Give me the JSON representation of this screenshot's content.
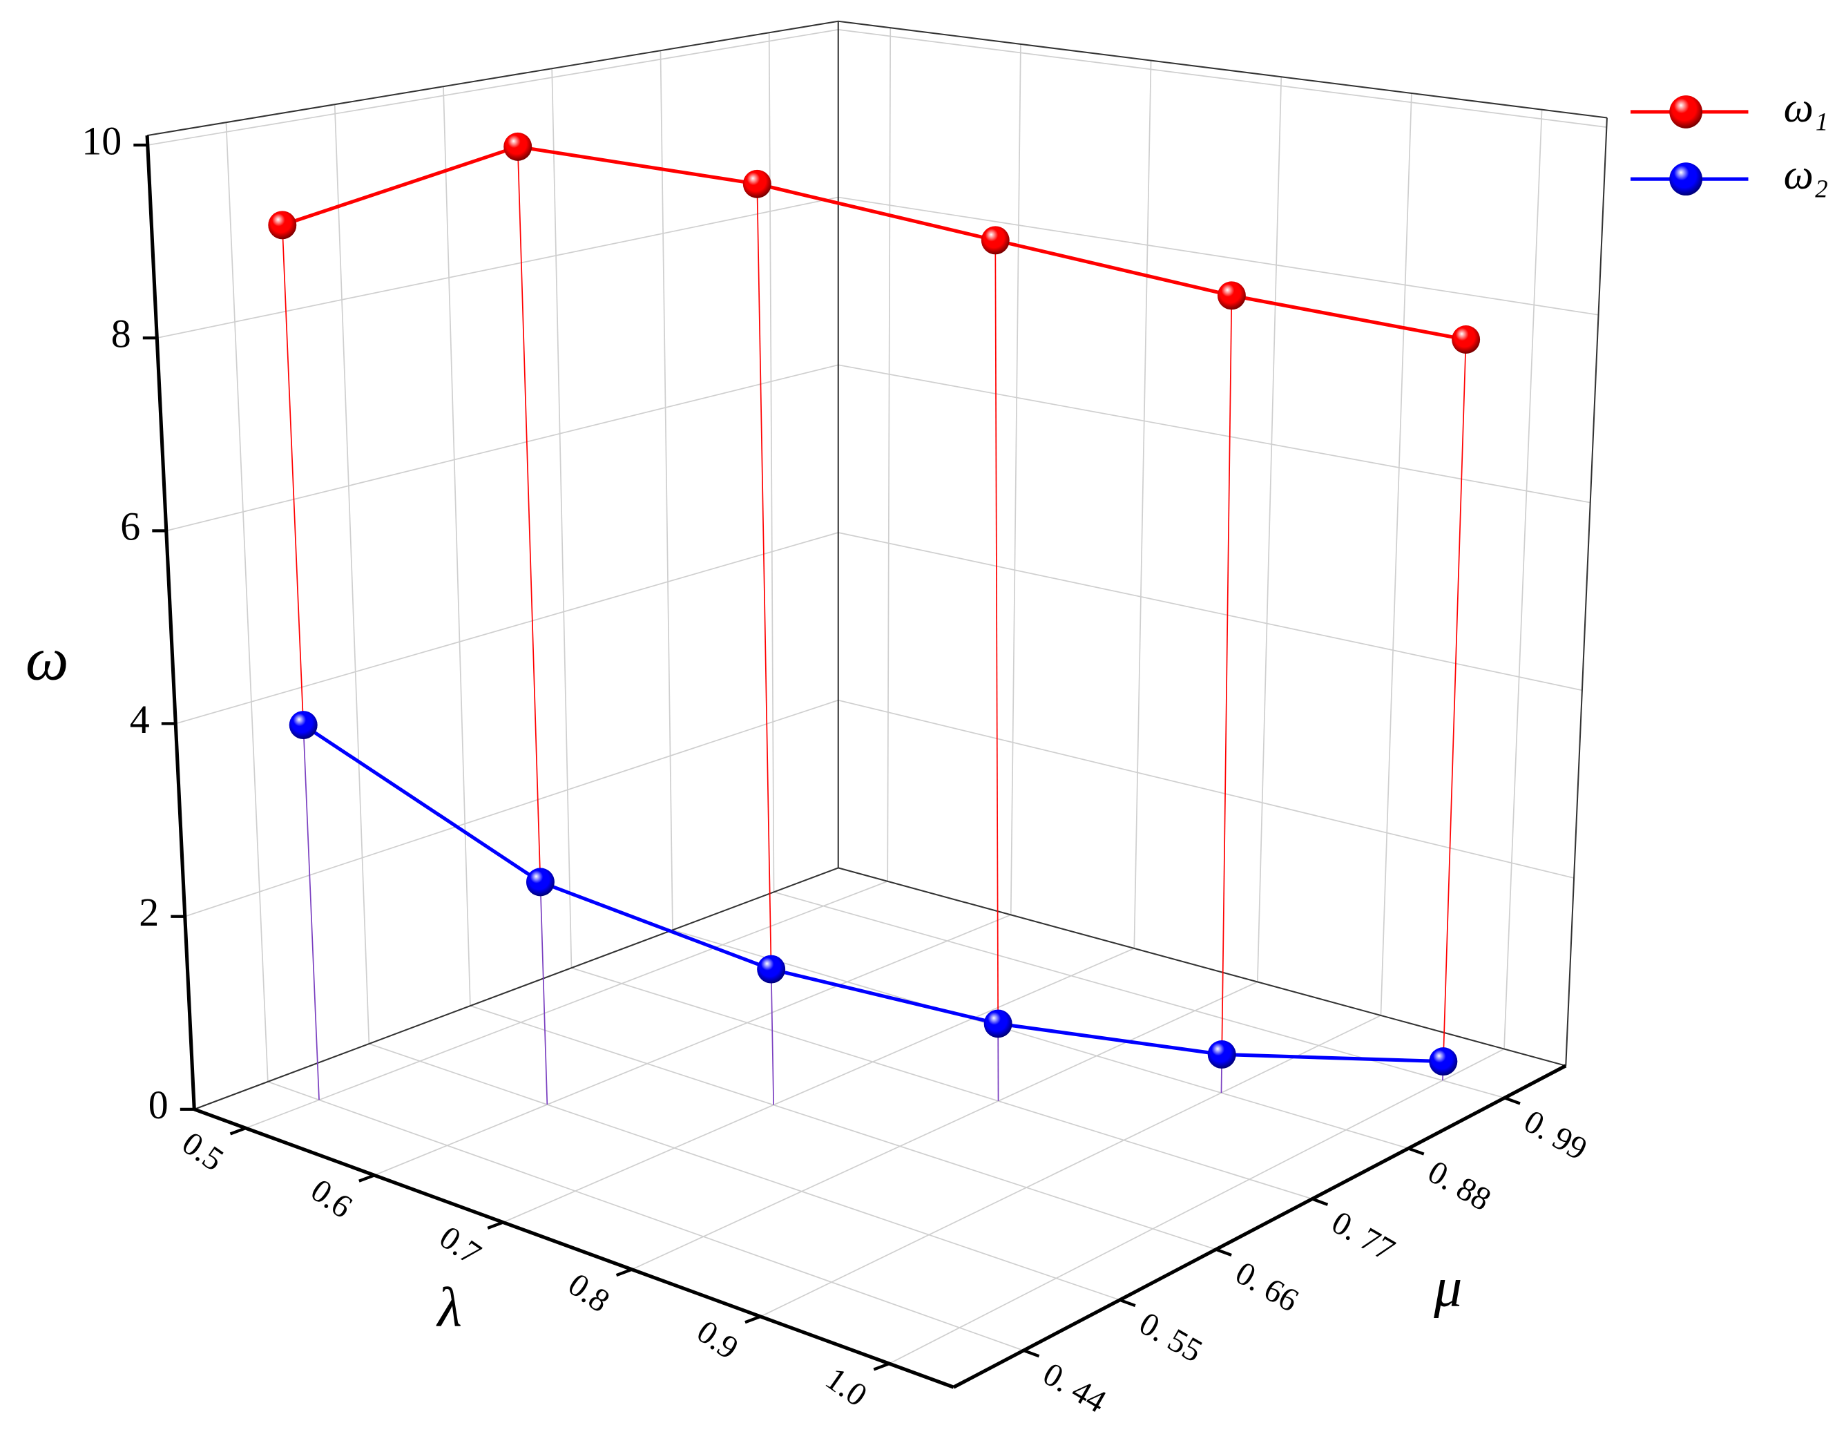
{
  "chart_data": {
    "type": "line3d",
    "x_label": "λ",
    "y_label": "μ",
    "z_label": "ω",
    "x": [
      0.5,
      0.6,
      0.7,
      0.8,
      0.9,
      1.0
    ],
    "y": [
      0.44,
      0.55,
      0.66,
      0.77,
      0.88,
      0.99
    ],
    "series": [
      {
        "name": "ω₁",
        "color": "#ff0000",
        "values": [
          9.1,
          9.9,
          9.5,
          8.9,
          8.3,
          7.8
        ]
      },
      {
        "name": "ω₂",
        "color": "#0000ff",
        "values": [
          3.9,
          2.3,
          1.4,
          0.8,
          0.4,
          0.2
        ]
      }
    ],
    "xlim": [
      0.46,
      1.05
    ],
    "ylim": [
      0.36,
      1.06
    ],
    "zlim": [
      0,
      10.1
    ],
    "xticks": [
      0.5,
      0.6,
      0.7,
      0.8,
      0.9,
      {
        "value": 1,
        "label": "1.0"
      }
    ],
    "yticks": [
      {
        "value": 0.44,
        "label": "0. 44"
      },
      {
        "value": 0.55,
        "label": "0. 55"
      },
      {
        "value": 0.66,
        "label": "0. 66"
      },
      {
        "value": 0.77,
        "label": "0. 77"
      },
      {
        "value": 0.88,
        "label": "0. 88"
      },
      {
        "value": 0.99,
        "label": "0. 99"
      }
    ],
    "zticks": [
      0,
      2,
      4,
      6,
      8,
      10
    ],
    "grid": true,
    "legend": "upper right"
  }
}
